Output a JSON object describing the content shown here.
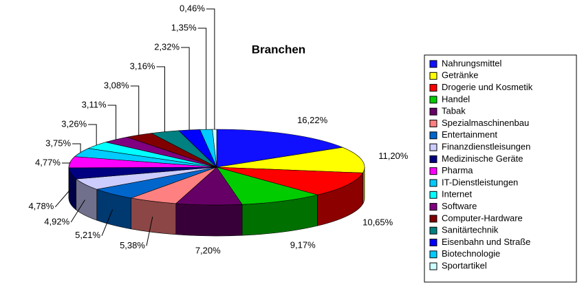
{
  "chart_data": {
    "type": "pie3d",
    "title": "Branchen",
    "categories": [
      "Nahrungsmittel",
      "Getränke",
      "Drogerie und Kosmetik",
      "Handel",
      "Tabak",
      "Spezialmaschinenbau",
      "Entertainment",
      "Finanzdienstleisungen",
      "Medizinische Geräte",
      "Pharma",
      "IT-Dienstleistungen",
      "Internet",
      "Software",
      "Computer-Hardware",
      "Sanitärtechnik",
      "Eisenbahn und Straße",
      "Biotechnologie",
      "Sportartikel"
    ],
    "values": [
      16.22,
      11.2,
      10.65,
      9.17,
      7.2,
      5.38,
      5.21,
      4.92,
      4.78,
      4.77,
      3.75,
      3.26,
      3.11,
      3.08,
      3.16,
      2.32,
      1.35,
      0.46
    ],
    "value_labels": [
      "16,22%",
      "11,20%",
      "10,65%",
      "9,17%",
      "7,20%",
      "5,38%",
      "5,21%",
      "4,92%",
      "4,78%",
      "4,77%",
      "3,75%",
      "3,26%",
      "3,11%",
      "3,08%",
      "3,16%",
      "2,32%",
      "1,35%",
      "0,46%"
    ],
    "colors": [
      "#1010ff",
      "#ffff00",
      "#ff0000",
      "#00cc00",
      "#660066",
      "#ff8080",
      "#0066cc",
      "#ccccff",
      "#000080",
      "#ff00ff",
      "#00ccff",
      "#00ffff",
      "#800080",
      "#800000",
      "#008080",
      "#0000ff",
      "#00ccff",
      "#ccffff"
    ],
    "legend": "right"
  }
}
